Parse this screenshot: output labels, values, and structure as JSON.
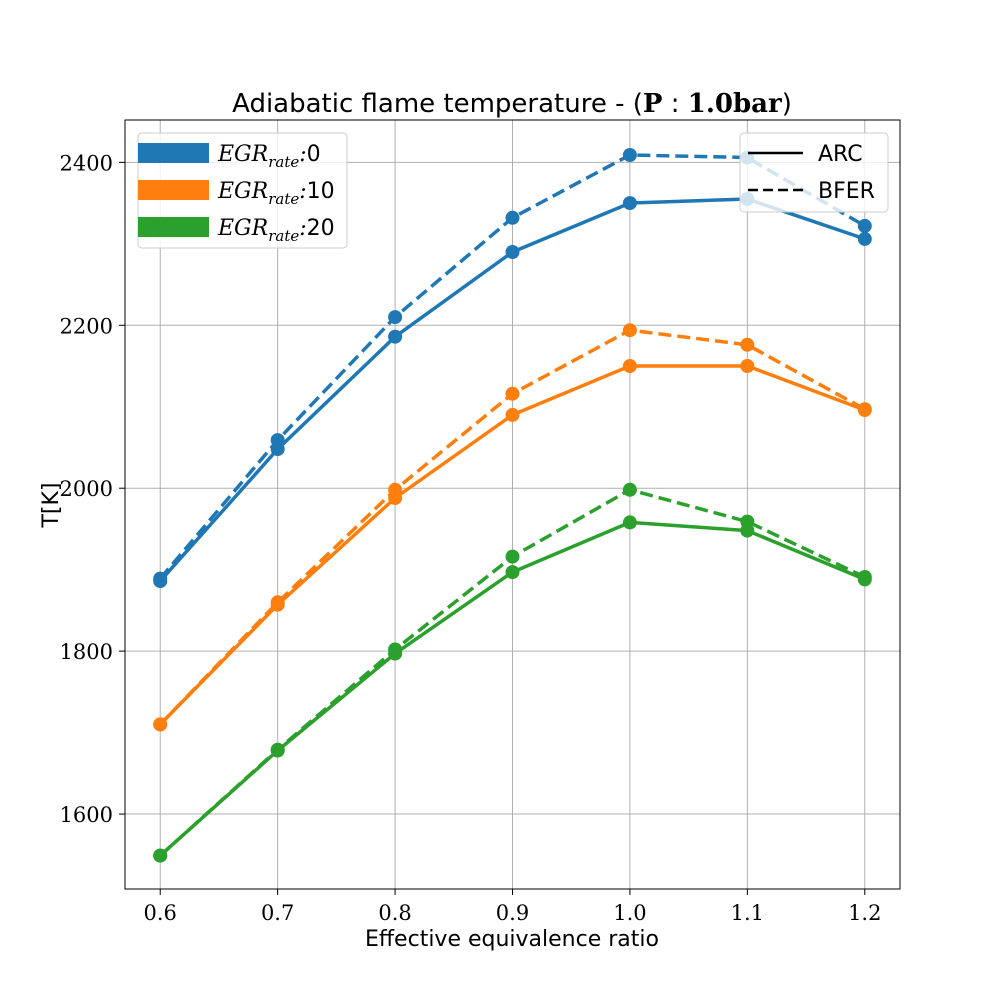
{
  "chart_data": {
    "type": "line",
    "title": {
      "prefix": "Adiabatic flame temperature - (",
      "bold": "P",
      "separator": " : ",
      "bold_value": "1.0bar",
      "suffix": ")"
    },
    "xlabel": "Effective equivalence ratio",
    "ylabel": "T[K]",
    "xlim": [
      0.57,
      1.23
    ],
    "ylim": [
      1508,
      2452
    ],
    "x_ticks": [
      "0.6",
      "0.7",
      "0.8",
      "0.9",
      "1.0",
      "1.1",
      "1.2"
    ],
    "y_ticks": [
      "1600",
      "1800",
      "2000",
      "2200",
      "2400"
    ],
    "grid": true,
    "x": [
      0.6,
      0.7,
      0.8,
      0.9,
      1.0,
      1.1,
      1.2
    ],
    "series": [
      {
        "name": "ARC",
        "egr": "0",
        "color": "#1f77b4",
        "style": "solid",
        "values": [
          1886,
          2048,
          2186,
          2290,
          2350,
          2355,
          2306
        ]
      },
      {
        "name": "BFER",
        "egr": "0",
        "color": "#1f77b4",
        "style": "dashed",
        "values": [
          1889,
          2059,
          2210,
          2332,
          2409,
          2406,
          2322
        ]
      },
      {
        "name": "ARC",
        "egr": "10",
        "color": "#ff7f0e",
        "style": "solid",
        "values": [
          1710,
          1857,
          1988,
          2090,
          2150,
          2150,
          2096
        ]
      },
      {
        "name": "BFER",
        "egr": "10",
        "color": "#ff7f0e",
        "style": "dashed",
        "values": [
          1710,
          1860,
          1998,
          2116,
          2194,
          2176,
          2097
        ]
      },
      {
        "name": "ARC",
        "egr": "20",
        "color": "#2ca02c",
        "style": "solid",
        "values": [
          1549,
          1678,
          1797,
          1897,
          1958,
          1948,
          1888
        ]
      },
      {
        "name": "BFER",
        "egr": "20",
        "color": "#2ca02c",
        "style": "dashed",
        "values": [
          1549,
          1679,
          1802,
          1916,
          1998,
          1959,
          1891
        ]
      }
    ],
    "legend_color": {
      "placement": "upper-left",
      "entries": [
        {
          "base": "EGR",
          "sub": "rate",
          "value": "0",
          "color": "#1f77b4"
        },
        {
          "base": "EGR",
          "sub": "rate",
          "value": "10",
          "color": "#ff7f0e"
        },
        {
          "base": "EGR",
          "sub": "rate",
          "value": "20",
          "color": "#2ca02c"
        }
      ]
    },
    "legend_style": {
      "placement": "upper-right",
      "entries": [
        {
          "label": "ARC",
          "style": "solid"
        },
        {
          "label": "BFER",
          "style": "dashed"
        }
      ]
    }
  }
}
